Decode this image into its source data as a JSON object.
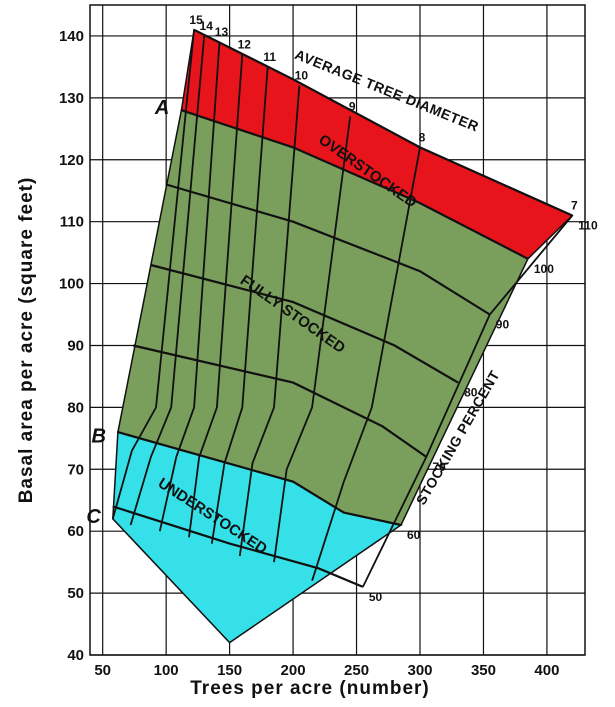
{
  "chart_data": {
    "type": "area",
    "xlabel": "Trees per acre (number)",
    "ylabel": "Basal area per acre (square feet)",
    "xlim": [
      40,
      430
    ],
    "ylim": [
      40,
      145
    ],
    "xticks": [
      50,
      100,
      150,
      200,
      250,
      300,
      350,
      400
    ],
    "yticks": [
      40,
      50,
      60,
      70,
      80,
      90,
      100,
      110,
      120,
      130,
      140
    ],
    "grid": true,
    "zones": [
      {
        "label": "OVERSTOCKED",
        "color": "#e8141c"
      },
      {
        "label": "FULLY STOCKED",
        "color": "#7a9e5c"
      },
      {
        "label": "UNDERSTOCKED",
        "color": "#36e0e8"
      }
    ],
    "stocking_percent": {
      "title": "STOCKING PERCENT",
      "lines": [
        {
          "label": "110",
          "points": [
            [
              122,
              141
            ],
            [
              200,
              133
            ],
            [
              300,
              122
            ],
            [
              420,
              111
            ]
          ]
        },
        {
          "label": "100",
          "points": [
            [
              112,
              128
            ],
            [
              200,
              122
            ],
            [
              300,
              113
            ],
            [
              385,
              104
            ]
          ]
        },
        {
          "label": "90",
          "points": [
            [
              100,
              116
            ],
            [
              200,
              110
            ],
            [
              300,
              102
            ],
            [
              355,
              95
            ]
          ]
        },
        {
          "label": "80",
          "points": [
            [
              88,
              103
            ],
            [
              200,
              97
            ],
            [
              280,
              90
            ],
            [
              330,
              84
            ]
          ]
        },
        {
          "label": "70",
          "points": [
            [
              74,
              90
            ],
            [
              200,
              84
            ],
            [
              270,
              77
            ],
            [
              305,
              72
            ]
          ]
        },
        {
          "label": "60",
          "points": [
            [
              62,
              76
            ],
            [
              200,
              68
            ],
            [
              240,
              63
            ],
            [
              285,
              61
            ]
          ]
        },
        {
          "label": "50",
          "points": [
            [
              58,
              64
            ],
            [
              150,
              58
            ],
            [
              220,
              54
            ],
            [
              255,
              51
            ]
          ]
        }
      ]
    },
    "average_tree_diameter": {
      "title": "AVERAGE TREE DIAMETER",
      "lines": [
        {
          "label": "15",
          "points": [
            [
              122,
              141
            ],
            [
              92,
              80
            ],
            [
              73,
              73
            ],
            [
              58,
              62
            ]
          ]
        },
        {
          "label": "14",
          "points": [
            [
              130,
              140
            ],
            [
              104,
              80
            ],
            [
              88,
              72
            ],
            [
              72,
              61
            ]
          ]
        },
        {
          "label": "13",
          "points": [
            [
              142,
              139
            ],
            [
              122,
              80
            ],
            [
              108,
              72
            ],
            [
              95,
              60
            ]
          ]
        },
        {
          "label": "12",
          "points": [
            [
              160,
              137
            ],
            [
              140,
              80
            ],
            [
              126,
              72
            ],
            [
              118,
              59
            ]
          ]
        },
        {
          "label": "11",
          "points": [
            [
              180,
              135
            ],
            [
              160,
              80
            ],
            [
              146,
              71
            ],
            [
              136,
              58
            ]
          ]
        },
        {
          "label": "10",
          "points": [
            [
              205,
              132
            ],
            [
              185,
              80
            ],
            [
              168,
              71
            ],
            [
              158,
              56
            ]
          ]
        },
        {
          "label": "9",
          "points": [
            [
              245,
              127
            ],
            [
              215,
              80
            ],
            [
              195,
              70
            ],
            [
              185,
              55
            ]
          ]
        },
        {
          "label": "8",
          "points": [
            [
              300,
              122
            ],
            [
              262,
              80
            ],
            [
              240,
              68
            ],
            [
              215,
              52
            ]
          ]
        },
        {
          "label": "7",
          "points": [
            [
              420,
              111
            ],
            [
              355,
              95
            ],
            [
              305,
              72
            ],
            [
              255,
              51
            ]
          ]
        }
      ]
    },
    "markers": [
      {
        "label": "A",
        "x": 112,
        "y": 128
      },
      {
        "label": "B",
        "x": 62,
        "y": 75
      },
      {
        "label": "C",
        "x": 58,
        "y": 62
      }
    ]
  },
  "colors": {
    "overstocked": "#e8141c",
    "fully": "#7a9e5c",
    "understocked": "#36e0e8",
    "grid": "#111111"
  }
}
